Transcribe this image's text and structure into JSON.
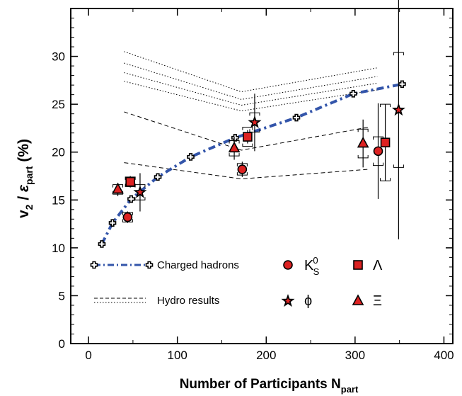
{
  "chart_data": {
    "type": "scatter",
    "title": "",
    "xlabel": "Number of Participants",
    "xlabel_sub": "part",
    "xlabel_var": "N",
    "ylabel": {
      "v": "v",
      "v_sub": "2",
      "slash": " / ",
      "eps": "ε",
      "eps_sub": "part",
      "unit": " (%)"
    },
    "xlim": [
      -20,
      410
    ],
    "ylim": [
      0,
      35
    ],
    "x_ticks": [
      0,
      100,
      200,
      300,
      400
    ],
    "y_ticks": [
      0,
      5,
      10,
      15,
      20,
      25,
      30
    ],
    "grid": false,
    "series": [
      {
        "name": "Charged hadrons",
        "marker": "cross",
        "color": "#3355aa",
        "line": "dash-dot",
        "points": [
          {
            "x": 15,
            "y": 10.4,
            "yerr": 0.3
          },
          {
            "x": 27,
            "y": 12.6,
            "yerr": 0.3
          },
          {
            "x": 48,
            "y": 15.1,
            "yerr": 0.3
          },
          {
            "x": 78,
            "y": 17.4,
            "yerr": 0.3
          },
          {
            "x": 115,
            "y": 19.5,
            "yerr": 0.3
          },
          {
            "x": 165,
            "y": 21.5,
            "yerr": 0.3
          },
          {
            "x": 234,
            "y": 23.6,
            "yerr": 0.3
          },
          {
            "x": 298,
            "y": 26.1,
            "yerr": 0.3
          },
          {
            "x": 353,
            "y": 27.1,
            "yerr": 0.3
          }
        ]
      },
      {
        "name": "K",
        "name_sub": "S",
        "name_sup": "0",
        "marker": "circle",
        "color": "#dd2222",
        "points": [
          {
            "x": 44,
            "y": 13.2,
            "yerr": 0.6,
            "sys": 0.5
          },
          {
            "x": 173,
            "y": 18.2,
            "yerr": 0.8,
            "sys": 0.6
          },
          {
            "x": 326,
            "y": 20.1,
            "yerr": 5.0,
            "sys": 1.5
          }
        ]
      },
      {
        "name": "Λ",
        "marker": "square",
        "color": "#dd2222",
        "points": [
          {
            "x": 47,
            "y": 16.9,
            "yerr": 0.6,
            "sys": 0.5
          },
          {
            "x": 179,
            "y": 21.6,
            "yerr": 0.7,
            "sys": 1.0
          },
          {
            "x": 334,
            "y": 21.0,
            "yerr": 4.0,
            "sys": 4.0
          }
        ]
      },
      {
        "name": "ϕ",
        "marker": "star",
        "color": "#dd2222",
        "points": [
          {
            "x": 58,
            "y": 15.8,
            "yerr": 2.0,
            "sys": 0.8
          },
          {
            "x": 187,
            "y": 23.1,
            "yerr": 3.0,
            "sys": 1.0
          },
          {
            "x": 349,
            "y": 24.4,
            "yerr": 13.5,
            "sys": 6.0
          }
        ]
      },
      {
        "name": "Ξ",
        "marker": "triangle",
        "color": "#dd2222",
        "points": [
          {
            "x": 33,
            "y": 16.1,
            "yerr": 0.7,
            "sys": 0.5
          },
          {
            "x": 164,
            "y": 20.4,
            "yerr": 1.2,
            "sys": 0.8
          },
          {
            "x": 309,
            "y": 20.9,
            "yerr": 2.5,
            "sys": 1.5
          }
        ]
      }
    ],
    "hydro_curves": {
      "name": "Hydro results",
      "dashed": [
        [
          [
            40,
            18.9
          ],
          [
            172,
            17.2
          ],
          [
            315,
            18.2
          ]
        ],
        [
          [
            40,
            24.2
          ],
          [
            172,
            20.2
          ],
          [
            315,
            22.6
          ]
        ]
      ],
      "dotted": [
        [
          [
            40,
            30.5
          ],
          [
            172,
            26.3
          ],
          [
            325,
            28.8
          ]
        ],
        [
          [
            40,
            29.3
          ],
          [
            172,
            25.5
          ],
          [
            325,
            27.9
          ]
        ],
        [
          [
            40,
            28.3
          ],
          [
            172,
            24.9
          ],
          [
            325,
            27.2
          ]
        ],
        [
          [
            40,
            27.4
          ],
          [
            172,
            24.3
          ],
          [
            325,
            26.5
          ]
        ]
      ]
    },
    "legend": {
      "position": "bottom-left",
      "charged_label": "Charged hadrons",
      "hydro_label": "Hydro results"
    }
  }
}
